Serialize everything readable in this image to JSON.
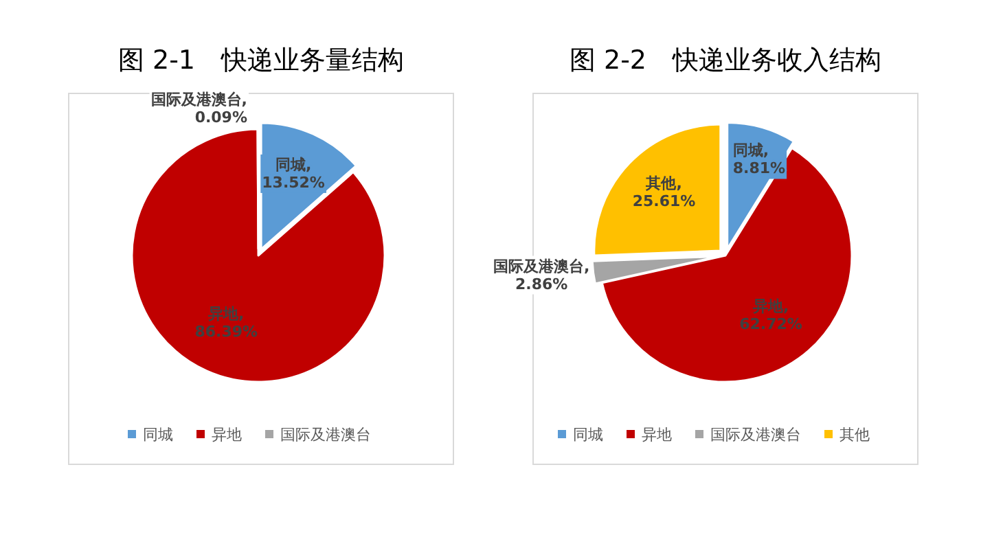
{
  "chart_data": [
    {
      "type": "pie",
      "title": "图 2-1　快递业务量结构",
      "categories": [
        "同城",
        "异地",
        "国际及港澳台"
      ],
      "values": [
        13.52,
        86.39,
        0.09
      ],
      "colors": [
        "#5b9bd5",
        "#c00000",
        "#a5a5a5"
      ],
      "value_labels": [
        "同城, 13.52%",
        "异地, 86.39%",
        "国际及港澳台, 0.09%"
      ],
      "legend": "bottom"
    },
    {
      "type": "pie",
      "title": "图 2-2　快递业务收入结构",
      "categories": [
        "同城",
        "异地",
        "国际及港澳台",
        "其他"
      ],
      "values": [
        8.81,
        62.72,
        2.86,
        25.61
      ],
      "colors": [
        "#5b9bd5",
        "#c00000",
        "#a5a5a5",
        "#ffc000"
      ],
      "value_labels": [
        "同城, 8.81%",
        "异地, 62.72%",
        "国际及港澳台, 2.86%",
        "其他, 25.61%"
      ],
      "legend": "bottom"
    }
  ]
}
